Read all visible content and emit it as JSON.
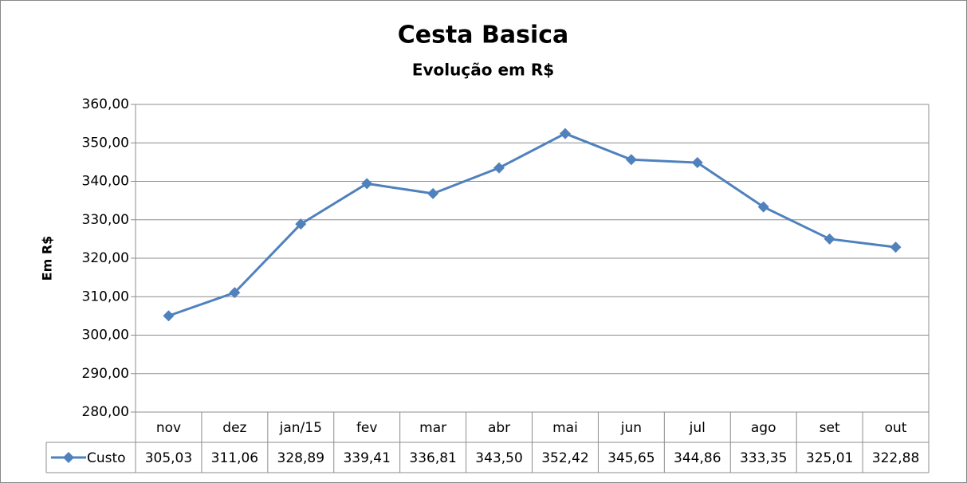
{
  "chart_data": {
    "type": "line",
    "title": "Cesta Basica",
    "subtitle": "Evolução em R$",
    "y_label": "Em R$",
    "categories": [
      "nov",
      "dez",
      "jan/15",
      "fev",
      "mar",
      "abr",
      "mai",
      "jun",
      "jul",
      "ago",
      "set",
      "out"
    ],
    "series": [
      {
        "name": "Custo",
        "color": "#4f81bd",
        "values": [
          305.03,
          311.06,
          328.89,
          339.41,
          336.81,
          343.5,
          352.42,
          345.65,
          344.86,
          333.35,
          325.01,
          322.88
        ],
        "value_labels": [
          "305,03",
          "311,06",
          "328,89",
          "339,41",
          "336,81",
          "343,50",
          "352,42",
          "345,65",
          "344,86",
          "333,35",
          "325,01",
          "322,88"
        ]
      }
    ],
    "ylim": [
      280,
      360
    ],
    "yticks": [
      {
        "value": 280,
        "label": "280,00"
      },
      {
        "value": 290,
        "label": "290,00"
      },
      {
        "value": 300,
        "label": "300,00"
      },
      {
        "value": 310,
        "label": "310,00"
      },
      {
        "value": 320,
        "label": "320,00"
      },
      {
        "value": 330,
        "label": "330,00"
      },
      {
        "value": 340,
        "label": "340,00"
      },
      {
        "value": 350,
        "label": "350,00"
      },
      {
        "value": 360,
        "label": "360,00"
      }
    ],
    "grid": true
  }
}
